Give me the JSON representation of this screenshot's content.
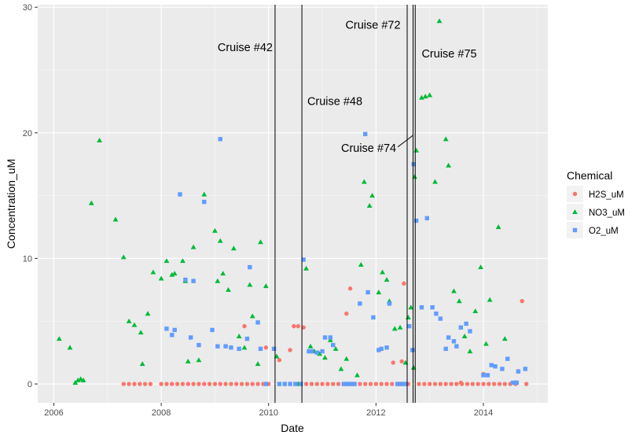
{
  "chart_data": {
    "type": "scatter",
    "xlabel": "Date",
    "ylabel": "Concentration_uM",
    "xlim": [
      2005.7,
      2015.2
    ],
    "ylim": [
      -1.5,
      30.2
    ],
    "x_ticks": [
      2006,
      2008,
      2010,
      2012,
      2014
    ],
    "y_ticks": [
      0,
      10,
      20,
      30
    ],
    "grid": true,
    "legend": {
      "title": "Chemical",
      "position": "right"
    },
    "series": [
      {
        "name": "H2S_uM",
        "color": "#F8766D",
        "shape": "circle",
        "points": [
          [
            2007.3,
            0
          ],
          [
            2007.4,
            0
          ],
          [
            2007.5,
            0
          ],
          [
            2007.6,
            0
          ],
          [
            2007.7,
            0
          ],
          [
            2007.8,
            0
          ],
          [
            2008.0,
            0
          ],
          [
            2008.1,
            0
          ],
          [
            2008.2,
            0
          ],
          [
            2008.3,
            0
          ],
          [
            2008.4,
            0
          ],
          [
            2008.5,
            0
          ],
          [
            2008.6,
            0
          ],
          [
            2008.7,
            0
          ],
          [
            2008.8,
            0
          ],
          [
            2008.9,
            0
          ],
          [
            2009.0,
            0
          ],
          [
            2009.1,
            0
          ],
          [
            2009.2,
            0
          ],
          [
            2009.3,
            0
          ],
          [
            2009.4,
            0
          ],
          [
            2009.5,
            0
          ],
          [
            2009.6,
            0
          ],
          [
            2009.7,
            0
          ],
          [
            2009.8,
            0
          ],
          [
            2009.9,
            0
          ],
          [
            2010.0,
            0
          ],
          [
            2010.2,
            0
          ],
          [
            2010.3,
            0
          ],
          [
            2010.5,
            0
          ],
          [
            2010.6,
            0
          ],
          [
            2010.7,
            0
          ],
          [
            2010.8,
            0
          ],
          [
            2010.9,
            0
          ],
          [
            2011.0,
            0
          ],
          [
            2011.1,
            0
          ],
          [
            2011.2,
            0
          ],
          [
            2011.3,
            0
          ],
          [
            2011.4,
            0
          ],
          [
            2011.5,
            0
          ],
          [
            2011.6,
            0
          ],
          [
            2011.7,
            0
          ],
          [
            2011.8,
            0
          ],
          [
            2011.9,
            0
          ],
          [
            2012.0,
            0
          ],
          [
            2012.1,
            0
          ],
          [
            2012.2,
            0
          ],
          [
            2012.3,
            0
          ],
          [
            2012.4,
            0
          ],
          [
            2012.5,
            0
          ],
          [
            2012.6,
            0
          ],
          [
            2012.8,
            0
          ],
          [
            2012.9,
            0
          ],
          [
            2013.0,
            0
          ],
          [
            2013.1,
            0
          ],
          [
            2013.2,
            0
          ],
          [
            2013.3,
            0
          ],
          [
            2013.4,
            0
          ],
          [
            2013.5,
            0
          ],
          [
            2013.6,
            0
          ],
          [
            2013.7,
            0
          ],
          [
            2013.8,
            0
          ],
          [
            2013.9,
            0
          ],
          [
            2014.0,
            0
          ],
          [
            2014.1,
            0
          ],
          [
            2014.2,
            0
          ],
          [
            2014.3,
            0
          ],
          [
            2014.4,
            0
          ],
          [
            2014.5,
            0
          ],
          [
            2014.6,
            0
          ],
          [
            2014.8,
            0
          ],
          [
            2009.55,
            4.6
          ],
          [
            2009.95,
            2.9
          ],
          [
            2010.2,
            1.9
          ],
          [
            2010.4,
            2.7
          ],
          [
            2010.47,
            4.6
          ],
          [
            2010.55,
            4.6
          ],
          [
            2010.65,
            4.5
          ],
          [
            2011.45,
            5.6
          ],
          [
            2011.52,
            7.6
          ],
          [
            2012.32,
            1.7
          ],
          [
            2012.48,
            1.8
          ],
          [
            2012.52,
            8.0
          ],
          [
            2013.58,
            0.1
          ],
          [
            2014.0,
            0.8
          ],
          [
            2014.72,
            6.6
          ]
        ]
      },
      {
        "name": "NO3_uM",
        "color": "#00BA38",
        "shape": "triangle",
        "points": [
          [
            2006.1,
            3.6
          ],
          [
            2006.3,
            2.9
          ],
          [
            2006.4,
            0.1
          ],
          [
            2006.45,
            0.3
          ],
          [
            2006.5,
            0.4
          ],
          [
            2006.55,
            0.3
          ],
          [
            2006.7,
            14.4
          ],
          [
            2006.85,
            19.4
          ],
          [
            2007.15,
            13.1
          ],
          [
            2007.3,
            10.1
          ],
          [
            2007.4,
            5.0
          ],
          [
            2007.5,
            4.7
          ],
          [
            2007.62,
            4.1
          ],
          [
            2007.65,
            1.6
          ],
          [
            2007.75,
            5.6
          ],
          [
            2007.85,
            8.9
          ],
          [
            2008.0,
            8.4
          ],
          [
            2008.1,
            9.8
          ],
          [
            2008.2,
            8.7
          ],
          [
            2008.25,
            8.8
          ],
          [
            2008.4,
            9.8
          ],
          [
            2008.45,
            8.2
          ],
          [
            2008.5,
            1.8
          ],
          [
            2008.6,
            10.9
          ],
          [
            2008.7,
            1.9
          ],
          [
            2008.8,
            15.1
          ],
          [
            2009.0,
            12.2
          ],
          [
            2009.05,
            8.2
          ],
          [
            2009.1,
            11.4
          ],
          [
            2009.15,
            8.8
          ],
          [
            2009.25,
            7.5
          ],
          [
            2009.35,
            10.8
          ],
          [
            2009.45,
            3.8
          ],
          [
            2009.55,
            2.9
          ],
          [
            2009.65,
            7.9
          ],
          [
            2009.7,
            5.4
          ],
          [
            2009.8,
            1.6
          ],
          [
            2009.85,
            11.3
          ],
          [
            2009.95,
            7.8
          ],
          [
            2010.15,
            2.2
          ],
          [
            2010.55,
            0
          ],
          [
            2010.7,
            9.2
          ],
          [
            2010.78,
            3.0
          ],
          [
            2010.85,
            2.6
          ],
          [
            2010.95,
            2.4
          ],
          [
            2011.05,
            2.1
          ],
          [
            2011.15,
            3.5
          ],
          [
            2011.25,
            2.8
          ],
          [
            2011.35,
            1.2
          ],
          [
            2011.45,
            2.0
          ],
          [
            2011.65,
            0.7
          ],
          [
            2011.72,
            9.5
          ],
          [
            2011.78,
            16.1
          ],
          [
            2011.88,
            14.2
          ],
          [
            2011.93,
            15.0
          ],
          [
            2012.05,
            7.3
          ],
          [
            2012.12,
            8.9
          ],
          [
            2012.2,
            8.3
          ],
          [
            2012.25,
            6.6
          ],
          [
            2012.35,
            4.4
          ],
          [
            2012.45,
            4.5
          ],
          [
            2012.55,
            1.7
          ],
          [
            2012.6,
            5.3
          ],
          [
            2012.65,
            6.1
          ],
          [
            2012.72,
            16.5
          ],
          [
            2012.75,
            18.6
          ],
          [
            2012.85,
            22.8
          ],
          [
            2012.92,
            22.9
          ],
          [
            2013.0,
            23.0
          ],
          [
            2013.1,
            16.1
          ],
          [
            2013.18,
            28.9
          ],
          [
            2013.3,
            19.5
          ],
          [
            2013.35,
            17.4
          ],
          [
            2013.45,
            7.4
          ],
          [
            2013.55,
            6.6
          ],
          [
            2013.65,
            3.8
          ],
          [
            2013.75,
            2.6
          ],
          [
            2013.85,
            5.8
          ],
          [
            2013.95,
            9.3
          ],
          [
            2014.05,
            3.2
          ],
          [
            2014.12,
            6.7
          ],
          [
            2014.28,
            12.5
          ],
          [
            2014.4,
            3.6
          ],
          [
            2014.6,
            0.1
          ],
          [
            2012.7,
            1.3
          ]
        ]
      },
      {
        "name": "O2_uM",
        "color": "#619CFF",
        "shape": "square",
        "points": [
          [
            2008.1,
            4.4
          ],
          [
            2008.2,
            3.9
          ],
          [
            2008.25,
            4.3
          ],
          [
            2008.35,
            15.1
          ],
          [
            2008.45,
            8.3
          ],
          [
            2008.55,
            3.7
          ],
          [
            2008.6,
            8.2
          ],
          [
            2008.7,
            3.1
          ],
          [
            2008.8,
            14.5
          ],
          [
            2008.95,
            4.3
          ],
          [
            2009.05,
            3.0
          ],
          [
            2009.1,
            19.5
          ],
          [
            2009.2,
            3.0
          ],
          [
            2009.3,
            2.9
          ],
          [
            2009.45,
            2.8
          ],
          [
            2009.6,
            3.6
          ],
          [
            2009.65,
            9.3
          ],
          [
            2009.8,
            4.9
          ],
          [
            2009.85,
            2.8
          ],
          [
            2009.95,
            0
          ],
          [
            2010.1,
            2.8
          ],
          [
            2010.2,
            0
          ],
          [
            2010.3,
            0
          ],
          [
            2010.4,
            0
          ],
          [
            2010.5,
            0
          ],
          [
            2010.6,
            0
          ],
          [
            2010.65,
            9.9
          ],
          [
            2010.75,
            2.6
          ],
          [
            2010.8,
            2.6
          ],
          [
            2010.9,
            2.5
          ],
          [
            2011.0,
            2.6
          ],
          [
            2011.05,
            3.7
          ],
          [
            2011.15,
            3.7
          ],
          [
            2011.2,
            3.1
          ],
          [
            2011.4,
            0
          ],
          [
            2011.45,
            0
          ],
          [
            2011.5,
            0
          ],
          [
            2011.55,
            0
          ],
          [
            2011.6,
            0
          ],
          [
            2011.7,
            6.4
          ],
          [
            2011.8,
            19.9
          ],
          [
            2011.85,
            7.3
          ],
          [
            2011.95,
            5.3
          ],
          [
            2012.05,
            2.7
          ],
          [
            2012.1,
            2.8
          ],
          [
            2012.2,
            2.9
          ],
          [
            2012.25,
            6.4
          ],
          [
            2012.4,
            0
          ],
          [
            2012.45,
            0
          ],
          [
            2012.5,
            0
          ],
          [
            2012.55,
            0
          ],
          [
            2012.62,
            4.6
          ],
          [
            2012.68,
            2.7
          ],
          [
            2012.7,
            17.5
          ],
          [
            2012.75,
            13.0
          ],
          [
            2012.85,
            6.1
          ],
          [
            2012.95,
            13.2
          ],
          [
            2013.05,
            6.1
          ],
          [
            2013.12,
            5.6
          ],
          [
            2013.2,
            5.2
          ],
          [
            2013.3,
            2.8
          ],
          [
            2013.35,
            3.7
          ],
          [
            2013.45,
            3.4
          ],
          [
            2013.5,
            3.0
          ],
          [
            2013.58,
            4.5
          ],
          [
            2013.68,
            4.8
          ],
          [
            2013.75,
            4.2
          ],
          [
            2014.0,
            0.7
          ],
          [
            2014.08,
            0.7
          ],
          [
            2014.15,
            1.5
          ],
          [
            2014.22,
            1.4
          ],
          [
            2014.35,
            1.2
          ],
          [
            2014.45,
            2.0
          ],
          [
            2014.55,
            0.1
          ],
          [
            2014.62,
            0.1
          ],
          [
            2014.65,
            1.0
          ],
          [
            2014.78,
            1.2
          ]
        ]
      }
    ],
    "vlines": [
      2010.12,
      2010.62,
      2012.58,
      2012.69,
      2012.73
    ],
    "annotations": [
      {
        "text": "Cruise #42",
        "x": 2009.05,
        "y": 26.5
      },
      {
        "text": "Cruise #48",
        "x": 2010.72,
        "y": 22.2
      },
      {
        "text": "Cruise #72",
        "x": 2011.43,
        "y": 28.3
      },
      {
        "text": "Cruise #75",
        "x": 2012.85,
        "y": 26.0
      },
      {
        "text": "Cruise #74",
        "x": 2011.35,
        "y": 18.5,
        "arrow_to": [
          2012.69,
          19.8
        ]
      }
    ]
  }
}
